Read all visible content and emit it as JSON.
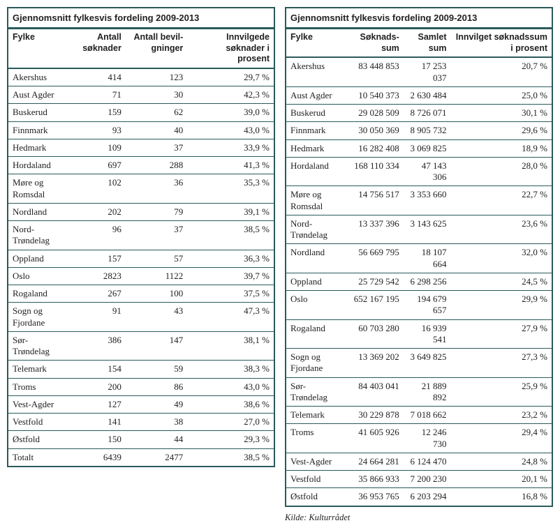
{
  "left": {
    "title": "Gjennomsnitt fylkesvis fordeling 2009-2013",
    "columns": [
      "Fylke",
      "Antall søknader",
      "Antall bevil-gninger",
      "Innvilgede søknader i prosent"
    ],
    "col_align": [
      "left",
      "right",
      "right",
      "right"
    ],
    "rows": [
      [
        "Akershus",
        "414",
        "123",
        "29,7 %"
      ],
      [
        "Aust Agder",
        "71",
        "30",
        "42,3 %"
      ],
      [
        "Buskerud",
        "159",
        "62",
        "39,0 %"
      ],
      [
        "Finnmark",
        "93",
        "40",
        "43,0 %"
      ],
      [
        "Hedmark",
        "109",
        "37",
        "33,9 %"
      ],
      [
        "Hordaland",
        "697",
        "288",
        "41,3 %"
      ],
      [
        "Møre og Romsdal",
        "102",
        "36",
        "35,3 %"
      ],
      [
        "Nordland",
        "202",
        "79",
        "39,1 %"
      ],
      [
        "Nord-Trøndelag",
        "96",
        "37",
        "38,5 %"
      ],
      [
        "Oppland",
        "157",
        "57",
        "36,3 %"
      ],
      [
        "Oslo",
        "2823",
        "1122",
        "39,7 %"
      ],
      [
        "Rogaland",
        "267",
        "100",
        "37,5 %"
      ],
      [
        "Sogn og Fjordane",
        "91",
        "43",
        "47,3 %"
      ],
      [
        "Sør-Trøndelag",
        "386",
        "147",
        "38,1 %"
      ],
      [
        "Telemark",
        "154",
        "59",
        "38,3 %"
      ],
      [
        "Troms",
        "200",
        "86",
        "43,0 %"
      ],
      [
        "Vest-Agder",
        "127",
        "49",
        "38,6 %"
      ],
      [
        "Vestfold",
        "141",
        "38",
        "27,0 %"
      ],
      [
        "Østfold",
        "150",
        "44",
        "29,3 %"
      ],
      [
        "Totalt",
        "6439",
        "2477",
        "38,5 %"
      ]
    ],
    "style": {
      "border_color": "#2a5a5a",
      "background": "#ffffff",
      "header_font": "Arial",
      "body_font": "Georgia",
      "font_size": 13
    }
  },
  "right": {
    "title": "Gjennomsnitt fylkesvis fordeling 2009-2013",
    "columns": [
      "Fylke",
      "Søknads-sum",
      "Samlet sum",
      "Innvilget søknadssum i prosent"
    ],
    "col_align": [
      "left",
      "right",
      "right",
      "right"
    ],
    "rows": [
      [
        "Akershus",
        "83 448 853",
        "17 253 037",
        "20,7 %"
      ],
      [
        "Aust Agder",
        "10 540 373",
        "2 630 484",
        "25,0 %"
      ],
      [
        "Buskerud",
        "29 028 509",
        "8 726 071",
        "30,1 %"
      ],
      [
        "Finnmark",
        "30 050 369",
        "8 905 732",
        "29,6 %"
      ],
      [
        "Hedmark",
        "16 282 408",
        "3 069 825",
        "18,9 %"
      ],
      [
        "Hordaland",
        "168 110 334",
        "47 143 306",
        "28,0 %"
      ],
      [
        "Møre og Romsdal",
        "14 756 517",
        "3 353 660",
        "22,7 %"
      ],
      [
        "Nord-Trøndelag",
        "13 337 396",
        "3 143 625",
        "23,6 %"
      ],
      [
        "Nordland",
        "56 669 795",
        "18 107 664",
        "32,0 %"
      ],
      [
        "Oppland",
        "25 729 542",
        "6 298 256",
        "24,5 %"
      ],
      [
        "Oslo",
        "652 167 195",
        "194 679 657",
        "29,9 %"
      ],
      [
        "Rogaland",
        "60 703 280",
        "16 939 541",
        "27,9 %"
      ],
      [
        "Sogn og Fjordane",
        "13 369 202",
        "3 649 825",
        "27,3 %"
      ],
      [
        "Sør-Trøndelag",
        "84 403 041",
        "21 889 892",
        "25,9 %"
      ],
      [
        "Telemark",
        "30 229 878",
        "7 018 662",
        "23,2 %"
      ],
      [
        "Troms",
        "41 605 926",
        "12 246 730",
        "29,4 %"
      ],
      [
        "Vest-Agder",
        "24 664 281",
        "6 124 470",
        "24,8 %"
      ],
      [
        "Vestfold",
        "35 866 933",
        "7 200 230",
        "20,1 %"
      ],
      [
        "Østfold",
        "36 953 765",
        "6 203 294",
        "16,8 %"
      ]
    ],
    "style": {
      "border_color": "#2a5a5a",
      "background": "#ffffff",
      "header_font": "Arial",
      "body_font": "Georgia",
      "font_size": 13
    }
  },
  "source": "Kilde: Kulturrådet"
}
